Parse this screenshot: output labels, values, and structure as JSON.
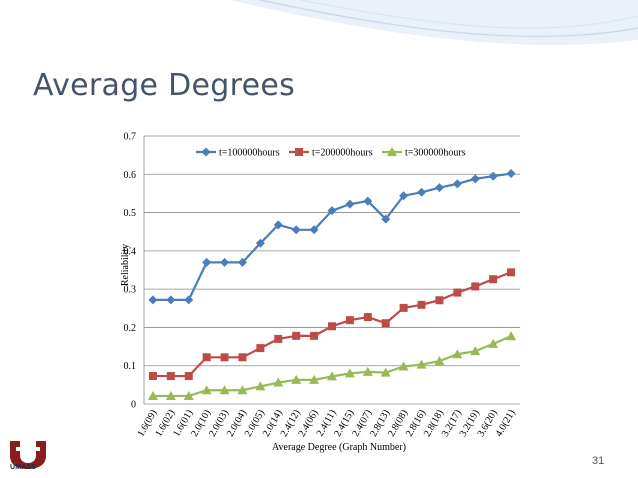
{
  "slide": {
    "title": "Average Degrees",
    "page_number": "31",
    "logo_text": "UMASS"
  },
  "colors": {
    "series1": "#4a7ebb",
    "series2": "#be4b48",
    "series3": "#98b954",
    "gridline": "#8c8c8c",
    "title": "#44546a"
  },
  "chart_data": {
    "type": "line",
    "title": "",
    "xlabel": "Average Degree (Graph Number)",
    "ylabel": "Reliability",
    "ylim": [
      0,
      0.7
    ],
    "yticks": [
      "0",
      "0.1",
      "0.2",
      "0.3",
      "0.4",
      "0.5",
      "0.6",
      "0.7"
    ],
    "grid": true,
    "legend_position": "top",
    "categories": [
      "1.6(09)",
      "1.6(02)",
      "1.6(01)",
      "2.0(10)",
      "2.0(03)",
      "2.0(04)",
      "2.0(05)",
      "2.0(14)",
      "2.4(12)",
      "2.4(06)",
      "2.4(11)",
      "2.4(15)",
      "2.4(07)",
      "2.8(13)",
      "2.8(08)",
      "2.8(16)",
      "2.8(18)",
      "3.2(17)",
      "3.2(19)",
      "3.6(20)",
      "4.0(21)"
    ],
    "series": [
      {
        "name": "t=100000hours",
        "marker": "diamond",
        "values": [
          0.272,
          0.272,
          0.272,
          0.37,
          0.37,
          0.37,
          0.42,
          0.468,
          0.455,
          0.455,
          0.505,
          0.522,
          0.53,
          0.483,
          0.544,
          0.553,
          0.565,
          0.575,
          0.588,
          0.595,
          0.602
        ]
      },
      {
        "name": "t=200000hours",
        "marker": "square",
        "values": [
          0.073,
          0.073,
          0.073,
          0.122,
          0.122,
          0.122,
          0.146,
          0.17,
          0.178,
          0.178,
          0.203,
          0.219,
          0.227,
          0.211,
          0.251,
          0.259,
          0.271,
          0.291,
          0.307,
          0.326,
          0.344
        ]
      },
      {
        "name": "t=300000hours",
        "marker": "triangle",
        "values": [
          0.021,
          0.021,
          0.021,
          0.036,
          0.036,
          0.036,
          0.046,
          0.056,
          0.063,
          0.063,
          0.072,
          0.08,
          0.084,
          0.082,
          0.098,
          0.103,
          0.112,
          0.13,
          0.138,
          0.157,
          0.177
        ]
      }
    ]
  }
}
